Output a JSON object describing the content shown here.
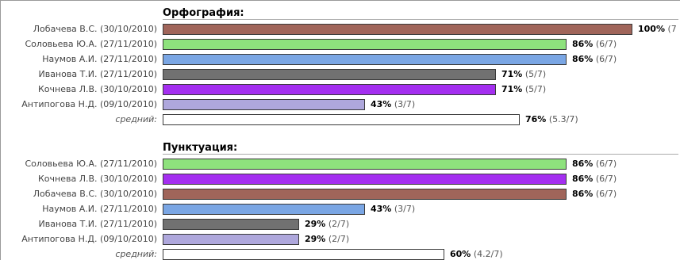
{
  "chart_data": [
    {
      "type": "bar",
      "orientation": "horizontal",
      "title": "Орфография:",
      "xlim": [
        0,
        100
      ],
      "rows": [
        {
          "label": "Лобачева В.С. (30/10/2010)",
          "value": 100,
          "value_label": "100%",
          "detail": "(7",
          "color": "#a0655a"
        },
        {
          "label": "Соловьева Ю.А. (27/11/2010)",
          "value": 86,
          "value_label": "86%",
          "detail": "(6/7)",
          "color": "#8ee27d"
        },
        {
          "label": "Наумов А.И. (27/11/2010)",
          "value": 86,
          "value_label": "86%",
          "detail": "(6/7)",
          "color": "#7aa6e4"
        },
        {
          "label": "Иванова Т.И. (27/11/2010)",
          "value": 71,
          "value_label": "71%",
          "detail": "(5/7)",
          "color": "#717171"
        },
        {
          "label": "Кочнева Л.В. (30/10/2010)",
          "value": 71,
          "value_label": "71%",
          "detail": "(5/7)",
          "color": "#a42ff0"
        },
        {
          "label": "Антипогова Н.Д. (09/10/2010)",
          "value": 43,
          "value_label": "43%",
          "detail": "(3/7)",
          "color": "#aea7dc"
        },
        {
          "label": "средний:",
          "value": 76,
          "value_label": "76%",
          "detail": "(5.3/7)",
          "color": "#ffffff",
          "average": true
        }
      ]
    },
    {
      "type": "bar",
      "orientation": "horizontal",
      "title": "Пунктуация:",
      "xlim": [
        0,
        100
      ],
      "rows": [
        {
          "label": "Соловьева Ю.А. (27/11/2010)",
          "value": 86,
          "value_label": "86%",
          "detail": "(6/7)",
          "color": "#8ee27d"
        },
        {
          "label": "Кочнева Л.В. (30/10/2010)",
          "value": 86,
          "value_label": "86%",
          "detail": "(6/7)",
          "color": "#a42ff0"
        },
        {
          "label": "Лобачева В.С. (30/10/2010)",
          "value": 86,
          "value_label": "86%",
          "detail": "(6/7)",
          "color": "#a0655a"
        },
        {
          "label": "Наумов А.И. (27/11/2010)",
          "value": 43,
          "value_label": "43%",
          "detail": "(3/7)",
          "color": "#7aa6e4"
        },
        {
          "label": "Иванова Т.И. (27/11/2010)",
          "value": 29,
          "value_label": "29%",
          "detail": "(2/7)",
          "color": "#717171"
        },
        {
          "label": "Антипогова Н.Д. (09/10/2010)",
          "value": 29,
          "value_label": "29%",
          "detail": "(2/7)",
          "color": "#aea7dc"
        },
        {
          "label": "средний:",
          "value": 60,
          "value_label": "60%",
          "detail": "(4.2/7)",
          "color": "#ffffff",
          "average": true
        }
      ]
    }
  ]
}
